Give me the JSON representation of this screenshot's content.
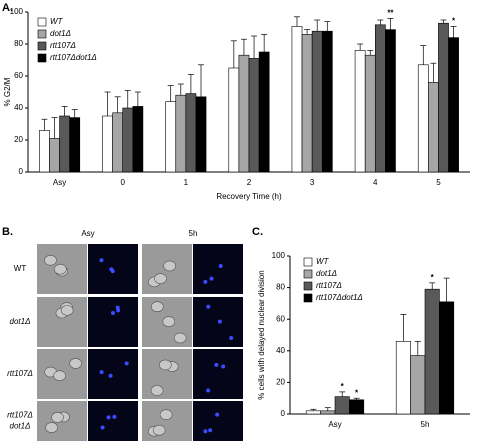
{
  "chart_data": [
    {
      "type": "bar",
      "panel": "A.",
      "ylabel": "% G2/M",
      "xlabel": "Recovery Time (h)",
      "categories": [
        "Asy",
        "0",
        "1",
        "2",
        "3",
        "4",
        "5"
      ],
      "series": [
        {
          "name": "WT",
          "color": "#ffffff",
          "values": [
            26,
            35,
            44,
            65,
            91,
            76,
            67
          ],
          "errors": [
            7,
            15,
            10,
            17,
            6,
            4,
            12
          ]
        },
        {
          "name": "dot1Δ",
          "color": "#a6a6a6",
          "values": [
            21,
            37,
            48,
            73,
            86,
            73,
            56
          ],
          "errors": [
            13,
            10,
            7,
            10,
            3,
            3,
            12
          ]
        },
        {
          "name": "rtt107Δ",
          "color": "#595959",
          "values": [
            35,
            40,
            49,
            71,
            88,
            92,
            93
          ],
          "errors": [
            6,
            11,
            12,
            14,
            7,
            3,
            2
          ]
        },
        {
          "name": "rtt107Δdot1Δ",
          "color": "#000000",
          "values": [
            34,
            41,
            47,
            75,
            88,
            89,
            84
          ],
          "errors": [
            5,
            9,
            20,
            11,
            6,
            7,
            7
          ]
        }
      ],
      "annotations": [
        {
          "text": "**",
          "category": "4",
          "series": "rtt107Δdot1Δ"
        },
        {
          "text": "*",
          "category": "5",
          "series": "rtt107Δdot1Δ"
        }
      ],
      "ylim": [
        0,
        100
      ],
      "yticks": [
        0,
        20,
        40,
        60,
        80,
        100
      ],
      "legend": "top-left"
    },
    {
      "type": "bar",
      "panel": "C.",
      "ylabel": "% cells with delayed nuclear division",
      "categories": [
        "Asy",
        "5h"
      ],
      "series": [
        {
          "name": "WT",
          "color": "#ffffff",
          "values": [
            2,
            46
          ],
          "errors": [
            1,
            17
          ]
        },
        {
          "name": "dot1Δ",
          "color": "#a6a6a6",
          "values": [
            2,
            37
          ],
          "errors": [
            2,
            9
          ]
        },
        {
          "name": "rtt107Δ",
          "color": "#595959",
          "values": [
            11,
            79
          ],
          "errors": [
            3,
            4
          ]
        },
        {
          "name": "rtt107Δdot1Δ",
          "color": "#000000",
          "values": [
            9,
            71
          ],
          "errors": [
            1,
            15
          ]
        }
      ],
      "annotations": [
        {
          "text": "*",
          "category": "Asy",
          "series": "rtt107Δ"
        },
        {
          "text": "*",
          "category": "Asy",
          "series": "rtt107Δdot1Δ"
        },
        {
          "text": "*",
          "category": "5h",
          "series": "rtt107Δ"
        }
      ],
      "ylim": [
        0,
        100
      ],
      "yticks": [
        0,
        20,
        40,
        60,
        80,
        100
      ],
      "legend": "top-left"
    }
  ],
  "image_panel": {
    "panel": "B.",
    "columns": [
      "Asy",
      "5h"
    ],
    "rows": [
      [
        "WT"
      ],
      [
        "dot1Δ"
      ],
      [
        "rtt107Δ"
      ],
      [
        "rtt107Δ",
        "dot1Δ"
      ]
    ]
  }
}
